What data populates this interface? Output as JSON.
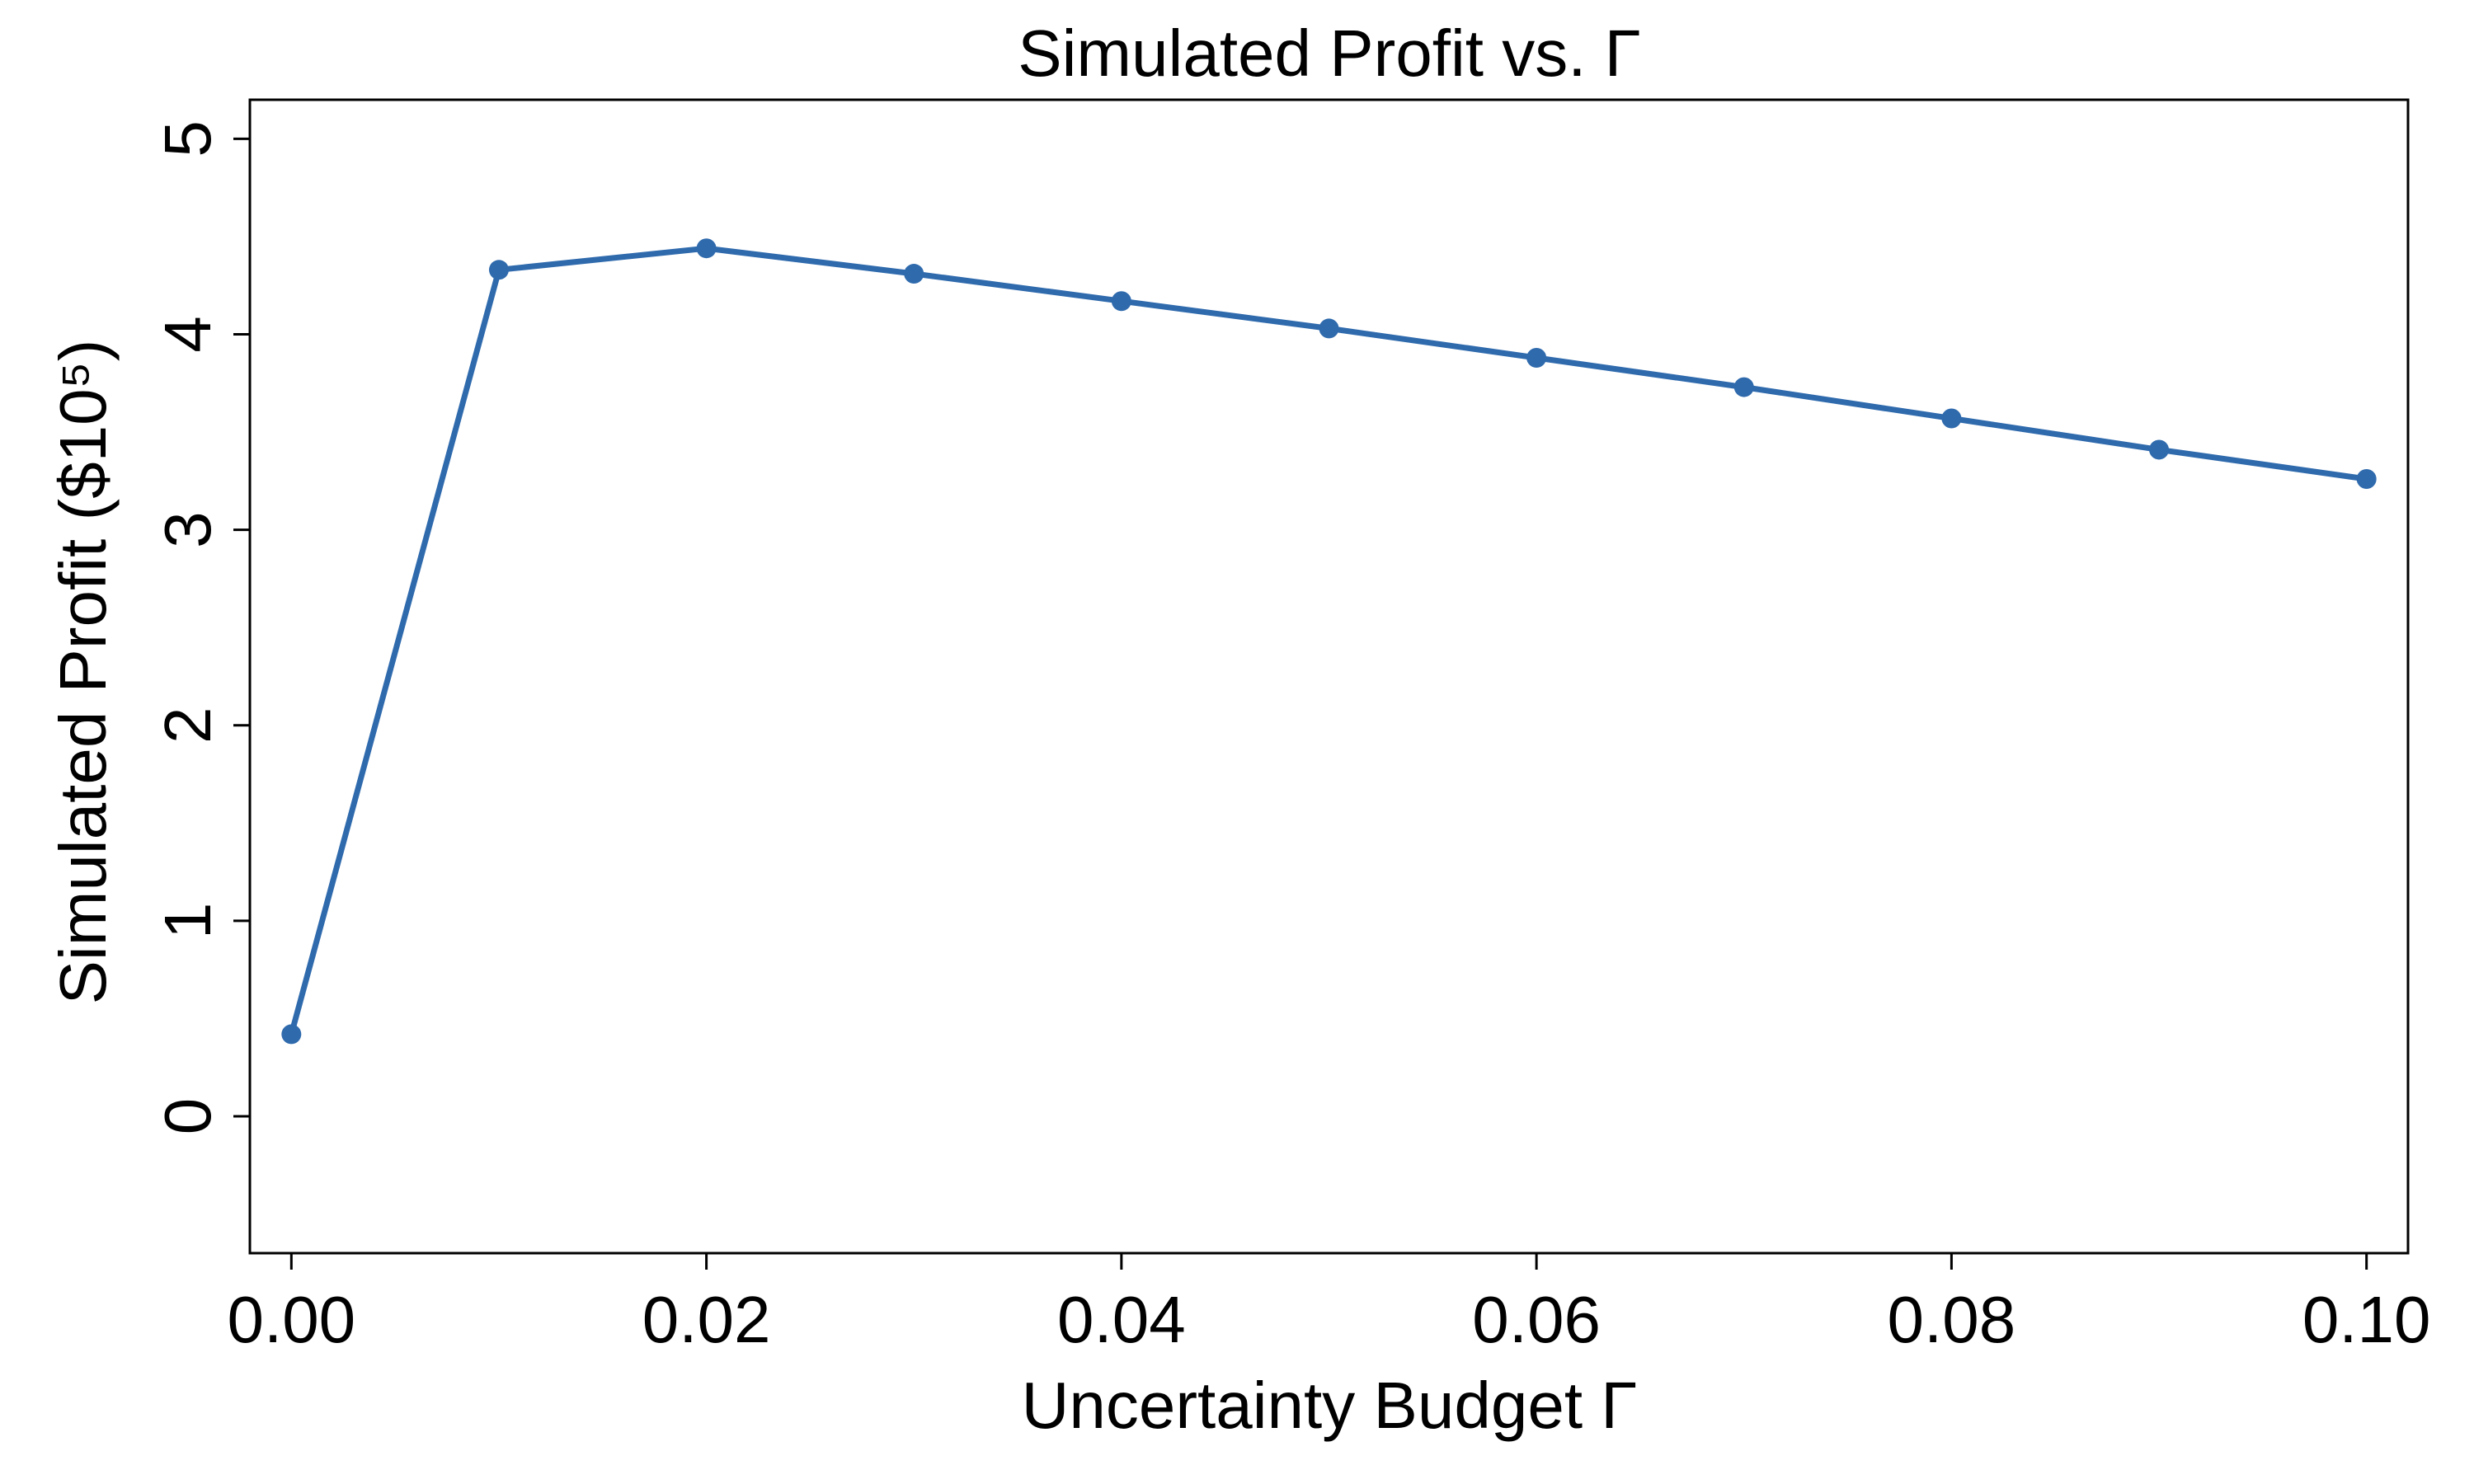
{
  "chart_data": {
    "type": "line",
    "title": "Simulated Profit vs. Γ",
    "xlabel": "Uncertainty Budget Γ",
    "ylabel": "Simulated Profit ($10⁵)",
    "xlim": [
      -0.002,
      0.102
    ],
    "ylim": [
      -0.7,
      5.2
    ],
    "xticks": [
      0.0,
      0.02,
      0.04,
      0.06,
      0.08,
      0.1
    ],
    "xtick_labels": [
      "0.00",
      "0.02",
      "0.04",
      "0.06",
      "0.08",
      "0.10"
    ],
    "yticks": [
      0,
      1,
      2,
      3,
      4,
      5
    ],
    "ytick_labels": [
      "0",
      "1",
      "2",
      "3",
      "4",
      "5"
    ],
    "grid": false,
    "line_color": "#2f6aad",
    "x": [
      0.0,
      0.01,
      0.02,
      0.03,
      0.04,
      0.05,
      0.06,
      0.07,
      0.08,
      0.09,
      0.1
    ],
    "series": [
      {
        "values": [
          0.42,
          4.33,
          4.44,
          4.31,
          4.17,
          4.03,
          3.88,
          3.73,
          3.57,
          3.41,
          3.26
        ]
      }
    ]
  }
}
